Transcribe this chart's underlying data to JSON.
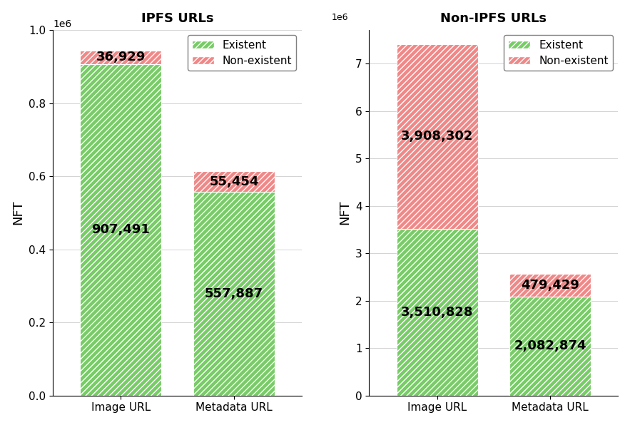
{
  "ipfs": {
    "title": "IPFS URLs",
    "categories": [
      "Image URL",
      "Metadata URL"
    ],
    "existent": [
      907491,
      557887
    ],
    "non_existent": [
      36929,
      55454
    ]
  },
  "non_ipfs": {
    "title": "Non-IPFS URLs",
    "categories": [
      "Image URL",
      "Metadata URL"
    ],
    "existent": [
      3510828,
      2082874
    ],
    "non_existent": [
      3908302,
      479429
    ]
  },
  "ylabel": "NFT",
  "existent_color": "#77cc66",
  "non_existent_color": "#f08888",
  "bar_width": 0.72,
  "legend_existent": "Existent",
  "legend_non_existent": "Non-existent",
  "title_fontsize": 13,
  "label_fontsize": 13,
  "tick_fontsize": 11,
  "value_fontsize": 13,
  "legend_fontsize": 11,
  "figsize": [
    8.83,
    5.96
  ],
  "dpi": 100
}
